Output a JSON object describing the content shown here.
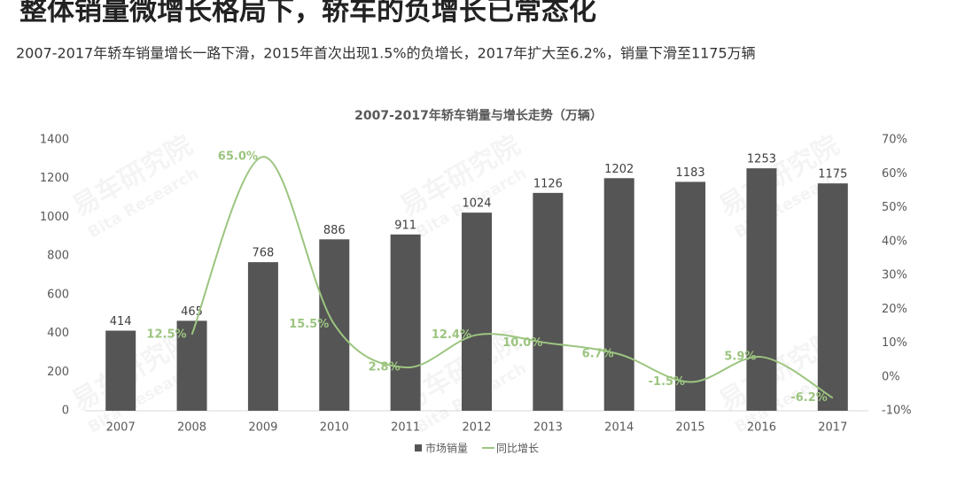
{
  "title": "整体销量微增长格局下，轿车的负增长已常态化",
  "subtitle": "2007-2017年轿车销量增长一路下滑，2015年首次出现1.5%的负增长，2017年扩大至6.2%，销量下滑至1175万辆",
  "chart_data": {
    "type": "combo",
    "title": "2007-2017年轿车销量与增长走势（万辆）",
    "watermark": [
      "易车研究院",
      "Bita Research"
    ],
    "categories": [
      "2007",
      "2008",
      "2009",
      "2010",
      "2011",
      "2012",
      "2013",
      "2014",
      "2015",
      "2016",
      "2017"
    ],
    "series": [
      {
        "name": "市场销量",
        "type": "bar",
        "color": "#555555",
        "values": [
          414,
          465,
          768,
          886,
          911,
          1024,
          1126,
          1202,
          1183,
          1253,
          1175
        ]
      },
      {
        "name": "同比增长",
        "type": "line",
        "axis": "y2",
        "color": "#9cc580",
        "values": [
          null,
          12.5,
          65.0,
          15.5,
          2.8,
          12.4,
          10.0,
          6.7,
          -1.5,
          5.9,
          -6.2
        ],
        "value_labels": [
          null,
          "12.5%",
          "65.0%",
          "15.5%",
          "2.8%",
          "12.4%",
          "10.0%",
          "6.7%",
          "-1.5%",
          "5.9%",
          "-6.2%"
        ]
      }
    ],
    "ylim": [
      0,
      1400
    ],
    "yticks": [
      0,
      200,
      400,
      600,
      800,
      1000,
      1200,
      1400
    ],
    "y2lim": [
      -10,
      70
    ],
    "y2ticks": [
      {
        "value": -10,
        "label": "-10%"
      },
      {
        "value": 0,
        "label": "0%"
      },
      {
        "value": 10,
        "label": "10%"
      },
      {
        "value": 20,
        "label": "20%"
      },
      {
        "value": 30,
        "label": "30%"
      },
      {
        "value": 40,
        "label": "40%"
      },
      {
        "value": 50,
        "label": "50%"
      },
      {
        "value": 60,
        "label": "60%"
      },
      {
        "value": 70,
        "label": "70%"
      }
    ],
    "grid": false,
    "legend": "bottom"
  }
}
